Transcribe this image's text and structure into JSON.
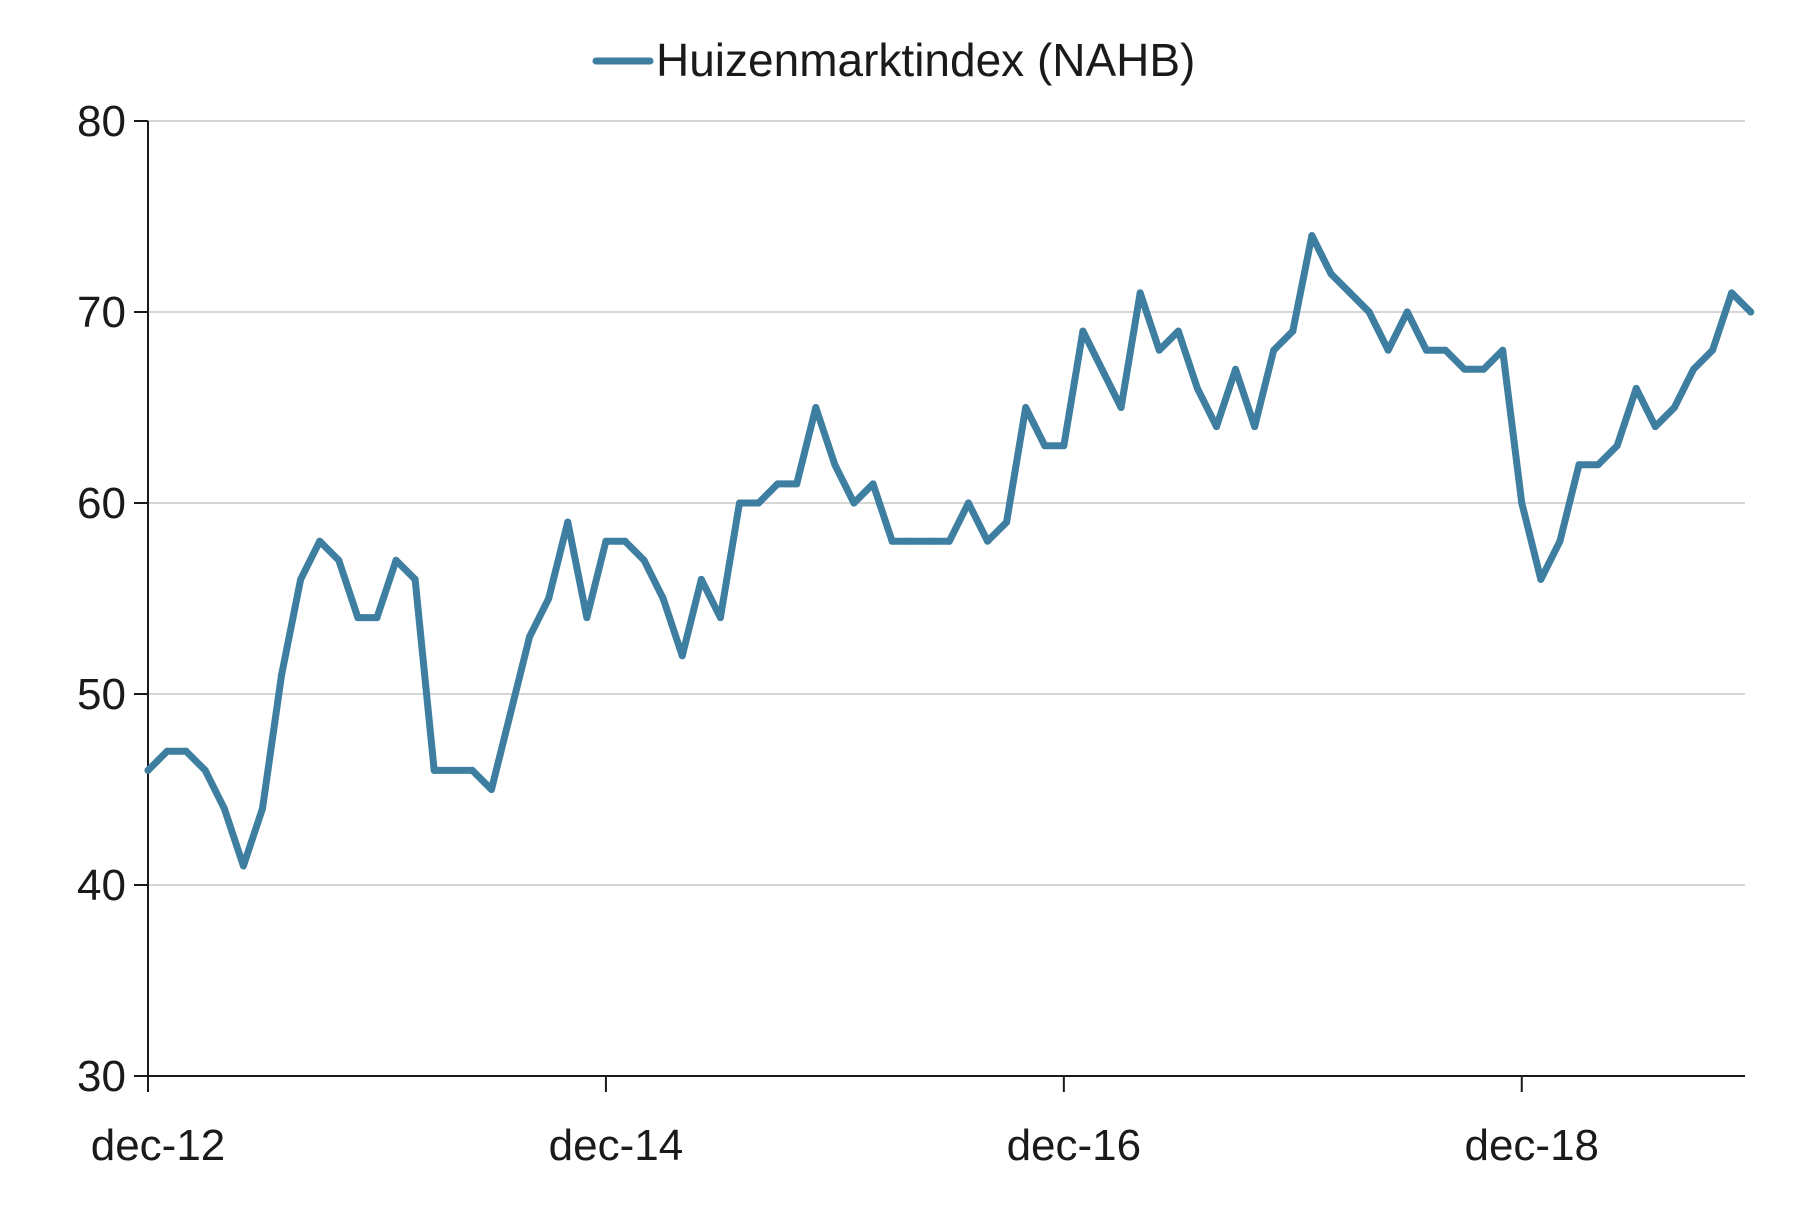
{
  "chart_data": {
    "type": "line",
    "title": "",
    "xlabel": "",
    "ylabel": "",
    "ylim": [
      30,
      80
    ],
    "yticks": [
      30,
      40,
      50,
      60,
      70,
      80
    ],
    "x_tick_labels": [
      "dec-12",
      "dec-14",
      "dec-16",
      "dec-18"
    ],
    "grid": "horizontal",
    "legend_position": "top-center",
    "colors": {
      "series": "#3e7ea0",
      "grid": "#c8c8c8",
      "axis": "#1a1a1a"
    },
    "x": [
      "dec-12",
      "jan-13",
      "feb-13",
      "mrt-13",
      "apr-13",
      "mei-13",
      "jun-13",
      "jul-13",
      "aug-13",
      "sep-13",
      "okt-13",
      "nov-13",
      "dec-13",
      "jan-14",
      "feb-14",
      "mrt-14",
      "apr-14",
      "mei-14",
      "jun-14",
      "jul-14",
      "aug-14",
      "sep-14",
      "okt-14",
      "nov-14",
      "dec-14",
      "jan-15",
      "feb-15",
      "mrt-15",
      "apr-15",
      "mei-15",
      "jun-15",
      "jul-15",
      "aug-15",
      "sep-15",
      "okt-15",
      "nov-15",
      "dec-15",
      "jan-16",
      "feb-16",
      "mrt-16",
      "apr-16",
      "mei-16",
      "jun-16",
      "jul-16",
      "aug-16",
      "sep-16",
      "okt-16",
      "nov-16",
      "dec-16",
      "jan-17",
      "feb-17",
      "mrt-17",
      "apr-17",
      "mei-17",
      "jun-17",
      "jul-17",
      "aug-17",
      "sep-17",
      "okt-17",
      "nov-17",
      "dec-17",
      "jan-18",
      "feb-18",
      "mrt-18",
      "apr-18",
      "mei-18",
      "jun-18",
      "jul-18",
      "aug-18",
      "sep-18",
      "okt-18",
      "nov-18",
      "dec-18",
      "jan-19",
      "feb-19",
      "mrt-19",
      "apr-19",
      "mei-19",
      "jun-19",
      "jul-19",
      "aug-19",
      "sep-19",
      "okt-19",
      "nov-19",
      "dec-19"
    ],
    "series": [
      {
        "name": "Huizenmarktindex (NAHB)",
        "values": [
          46,
          47,
          47,
          46,
          44,
          41,
          44,
          51,
          56,
          58,
          57,
          54,
          54,
          57,
          56,
          46,
          46,
          46,
          45,
          49,
          53,
          55,
          59,
          54,
          58,
          58,
          57,
          55,
          52,
          56,
          54,
          60,
          60,
          61,
          61,
          65,
          62,
          60,
          61,
          58,
          58,
          58,
          58,
          60,
          58,
          59,
          65,
          63,
          63,
          69,
          67,
          65,
          71,
          68,
          69,
          66,
          64,
          67,
          64,
          68,
          69,
          74,
          72,
          71,
          70,
          68,
          70,
          68,
          68,
          67,
          67,
          68,
          60,
          56,
          58,
          62,
          62,
          63,
          66,
          64,
          65,
          67,
          68,
          71,
          70
        ]
      }
    ]
  }
}
